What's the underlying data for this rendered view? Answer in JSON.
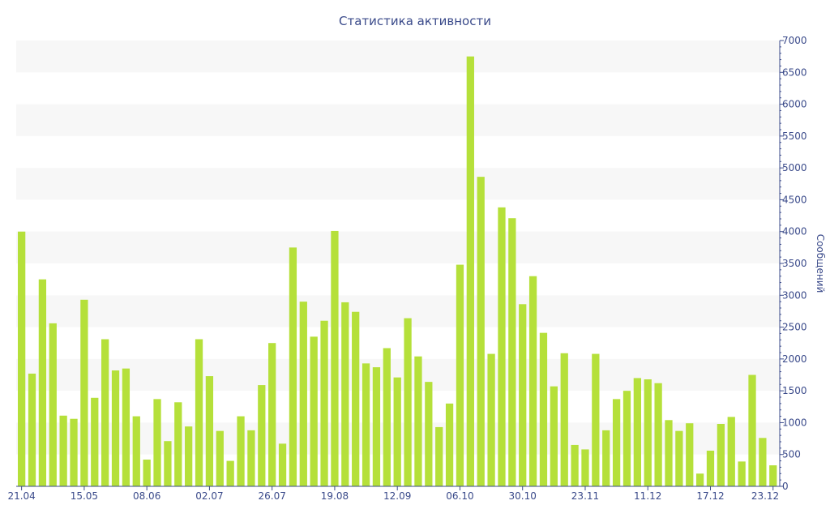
{
  "chart_data": {
    "type": "bar",
    "title": "Статистика активности",
    "xlabel": "",
    "ylabel": "Сообщений",
    "ylim": [
      0,
      7000
    ],
    "y_ticks": [
      0,
      500,
      1000,
      1500,
      2000,
      2500,
      3000,
      3500,
      4000,
      4500,
      5000,
      5500,
      6000,
      6500,
      7000
    ],
    "y_axis_side": "right",
    "grid": "alternating horizontal bands",
    "bar_color": "#b5e03a",
    "band_color": "#f7f7f7",
    "text_color": "#3a4a8a",
    "x_tick_labels": [
      {
        "label": "21.04",
        "index": 0
      },
      {
        "label": "15.05",
        "index": 6
      },
      {
        "label": "08.06",
        "index": 12
      },
      {
        "label": "02.07",
        "index": 18
      },
      {
        "label": "26.07",
        "index": 24
      },
      {
        "label": "19.08",
        "index": 30
      },
      {
        "label": "12.09",
        "index": 36
      },
      {
        "label": "06.10",
        "index": 42
      },
      {
        "label": "30.10",
        "index": 48
      },
      {
        "label": "23.11",
        "index": 54
      },
      {
        "label": "11.12",
        "index": 60
      },
      {
        "label": "17.12",
        "index": 66
      },
      {
        "label": "23.12",
        "index": 72
      }
    ],
    "values": [
      4000,
      1770,
      3250,
      2560,
      1110,
      1060,
      2930,
      1390,
      2310,
      1820,
      1850,
      1100,
      420,
      1370,
      710,
      1320,
      940,
      2310,
      1730,
      870,
      400,
      1100,
      880,
      1590,
      2250,
      670,
      3750,
      2900,
      2350,
      2600,
      4010,
      2890,
      2740,
      1930,
      1870,
      2170,
      1710,
      2640,
      2040,
      1640,
      930,
      1300,
      3480,
      6750,
      4860,
      2080,
      4380,
      4210,
      2860,
      3300,
      2410,
      1570,
      2090,
      650,
      580,
      2080,
      880,
      1370,
      1500,
      1700,
      1680,
      1620,
      1040,
      870,
      990,
      200,
      560,
      980,
      1090,
      390,
      1750,
      760,
      330
    ]
  }
}
